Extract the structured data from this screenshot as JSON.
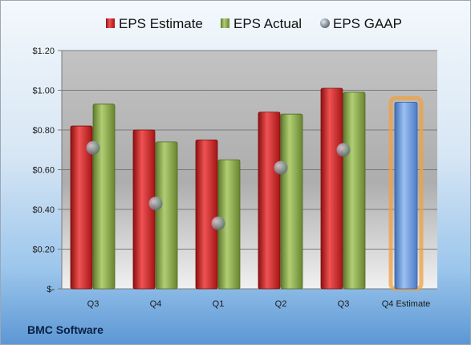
{
  "footer": {
    "company": "BMC Software"
  },
  "chart_data": {
    "type": "bar",
    "title": "",
    "xlabel": "",
    "ylabel": "",
    "categories": [
      "Q3",
      "Q4",
      "Q1",
      "Q2",
      "Q3",
      "Q4 Estimate"
    ],
    "ylim": [
      0,
      1.2
    ],
    "y_ticks": [
      0,
      0.2,
      0.4,
      0.6,
      0.8,
      1.0,
      1.2
    ],
    "y_tick_labels": [
      "$-",
      "$0.20",
      "$0.40",
      "$0.60",
      "$0.80",
      "$1.00",
      "$1.20"
    ],
    "grid": true,
    "legend_position": "top",
    "series": [
      {
        "name": "EPS Estimate",
        "kind": "bar",
        "color": "#d42b2b",
        "values": [
          0.82,
          0.8,
          0.75,
          0.89,
          1.01,
          null
        ]
      },
      {
        "name": "EPS Actual",
        "kind": "bar",
        "color": "#8fad4f",
        "values": [
          0.93,
          0.74,
          0.65,
          0.88,
          0.99,
          null
        ]
      },
      {
        "name": "EPS GAAP",
        "kind": "marker",
        "color": "#a9b4be",
        "values": [
          0.71,
          0.43,
          0.33,
          0.61,
          0.7,
          null
        ]
      }
    ],
    "forecast": {
      "category": "Q4 Estimate",
      "value": 0.94,
      "color": "#6b9ee0",
      "highlight_color": "#f0a040"
    }
  }
}
